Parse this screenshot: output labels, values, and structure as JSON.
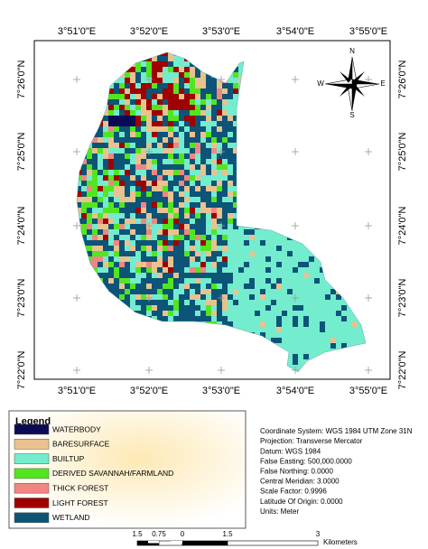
{
  "map": {
    "top_labels": [
      "3°51'0\"E",
      "3°52'0\"E",
      "3°53'0\"E",
      "3°54'0\"E",
      "3°55'0\"E"
    ],
    "bottom_labels": [
      "3°51'0\"E",
      "3°52'0\"E",
      "3°53'0\"E",
      "3°54'0\"E",
      "3°55'0\"E"
    ],
    "left_labels": [
      "7°26'0\"N",
      "7°25'0\"N",
      "7°24'0\"N",
      "7°23'0\"N",
      "7°22'0\"N"
    ],
    "right_labels": [
      "7°26'0\"N",
      "7°25'0\"N",
      "7°24'0\"N",
      "7°23'0\"N",
      "7°22'0\"N"
    ],
    "north_arrow": {
      "n": "N",
      "s": "S",
      "e": "E",
      "w": "W"
    }
  },
  "legend": {
    "title": "Legend",
    "items": [
      {
        "label": "WATERBODY",
        "color": "#0b0b55"
      },
      {
        "label": "BARESURFACE",
        "color": "#e9c28f"
      },
      {
        "label": "BUILTUP",
        "color": "#74ecce"
      },
      {
        "label": "DERIVED SAVANNAH/FARMLAND",
        "color": "#52e620"
      },
      {
        "label": "THICK FOREST",
        "color": "#f08682"
      },
      {
        "label": "LIGHT FOREST",
        "color": "#a00000"
      },
      {
        "label": "WETLAND",
        "color": "#0c5478"
      }
    ]
  },
  "info": [
    "Coordinate System: WGS 1984 UTM Zone 31N",
    "Projection: Transverse Mercator",
    "Datum: WGS 1984",
    "False Easting: 500,000.0000",
    "False Northing: 0.0000",
    "Central Meridian: 3.0000",
    "Scale Factor: 0.9996",
    "Latitude Of Origin: 0.0000",
    "Units: Meter"
  ],
  "scale_bar": {
    "labels": [
      "1.5",
      "0.75",
      "0",
      "1.5",
      "3"
    ],
    "unit": "Kilometers"
  }
}
